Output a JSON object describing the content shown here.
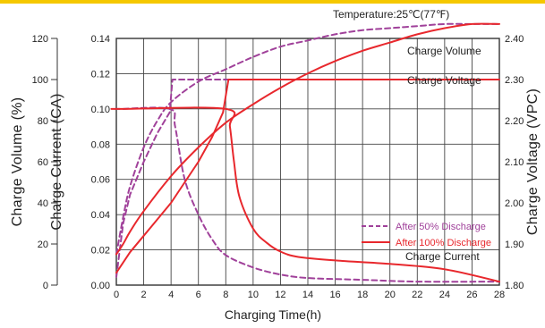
{
  "chart_data": {
    "type": "line",
    "temperature_label": "Temperature:25℃(77℉)",
    "xlabel": "Charging Time(h)",
    "xlim": [
      0,
      28
    ],
    "x_ticks": [
      "0",
      "2",
      "4",
      "6",
      "8",
      "10",
      "12",
      "14",
      "16",
      "18",
      "20",
      "22",
      "24",
      "26",
      "28"
    ],
    "y_axes": [
      {
        "label": "Charge Volume (%)",
        "lim": [
          0,
          120
        ],
        "ticks": [
          "0",
          "20",
          "40",
          "60",
          "80",
          "100",
          "120"
        ]
      },
      {
        "label": "Charge Current (CA)",
        "lim": [
          0,
          0.14
        ],
        "ticks": [
          "0.00",
          "0.02",
          "0.04",
          "0.06",
          "0.08",
          "0.10",
          "0.12",
          "0.14"
        ]
      },
      {
        "label": "Charge Voltage (VPC)",
        "lim": [
          1.8,
          2.4
        ],
        "ticks": [
          "1.80",
          "1.90",
          "2.00",
          "2.10",
          "2.20",
          "2.30",
          "2.40"
        ]
      }
    ],
    "annotations": [
      "Charge Volume",
      "Charge Voltage",
      "Charge Current"
    ],
    "legend": {
      "placement": "center-right",
      "entries": [
        {
          "label": "After 50% Discharge",
          "color": "#a0419a",
          "style": "dashed"
        },
        {
          "label": "After 100% Discharge",
          "color": "#e8282d",
          "style": "solid"
        }
      ]
    },
    "grid": true,
    "series": [
      {
        "legend": "After 50% Discharge",
        "quantity": "Charge Volume",
        "axis": "volume",
        "x": [
          0,
          0.5,
          1,
          2,
          3,
          4,
          6,
          8,
          10,
          12,
          14,
          16,
          18,
          20,
          22,
          24,
          26,
          28
        ],
        "y": [
          15,
          33,
          48,
          67,
          80,
          89,
          99,
          105,
          111,
          116,
          119,
          122,
          124,
          125,
          126,
          127,
          127,
          127
        ]
      },
      {
        "legend": "After 50% Discharge",
        "quantity": "Charge Voltage",
        "axis": "voltage",
        "x": [
          0,
          0.5,
          1,
          2,
          3,
          3.9,
          4.1,
          28
        ],
        "y": [
          1.82,
          1.95,
          2.02,
          2.1,
          2.17,
          2.22,
          2.3,
          2.3
        ]
      },
      {
        "legend": "After 50% Discharge",
        "quantity": "Charge Current",
        "axis": "current",
        "x": [
          0,
          0.3,
          3.9,
          4.3,
          5,
          6,
          7,
          8,
          10,
          12,
          14,
          18,
          22,
          28
        ],
        "y": [
          0.1,
          0.1,
          0.1,
          0.09,
          0.06,
          0.04,
          0.026,
          0.017,
          0.01,
          0.006,
          0.004,
          0.003,
          0.002,
          0.002
        ]
      },
      {
        "legend": "After 100% Discharge",
        "quantity": "Charge Volume",
        "axis": "volume",
        "x": [
          0,
          0.5,
          1,
          2,
          4,
          6,
          8,
          10,
          12,
          14,
          16,
          18,
          20,
          22,
          24,
          26,
          28
        ],
        "y": [
          15,
          20,
          26,
          36,
          53,
          67,
          79,
          88,
          96,
          103,
          109,
          114,
          118,
          122,
          125,
          127,
          127
        ]
      },
      {
        "legend": "After 100% Discharge",
        "quantity": "Charge Voltage",
        "axis": "voltage",
        "x": [
          0,
          1,
          2,
          3,
          4,
          5,
          6,
          7,
          7.8,
          8.2,
          28
        ],
        "y": [
          1.83,
          1.88,
          1.92,
          1.96,
          2.0,
          2.05,
          2.1,
          2.16,
          2.22,
          2.3,
          2.3
        ]
      },
      {
        "legend": "After 100% Discharge",
        "quantity": "Charge Current",
        "axis": "current",
        "x": [
          0,
          0.3,
          8,
          8.3,
          8.6,
          9,
          10,
          11,
          12,
          13.3,
          16,
          20,
          24,
          28
        ],
        "y": [
          0.1,
          0.1,
          0.1,
          0.09,
          0.07,
          0.05,
          0.032,
          0.024,
          0.019,
          0.016,
          0.014,
          0.012,
          0.009,
          0.002
        ]
      }
    ]
  }
}
